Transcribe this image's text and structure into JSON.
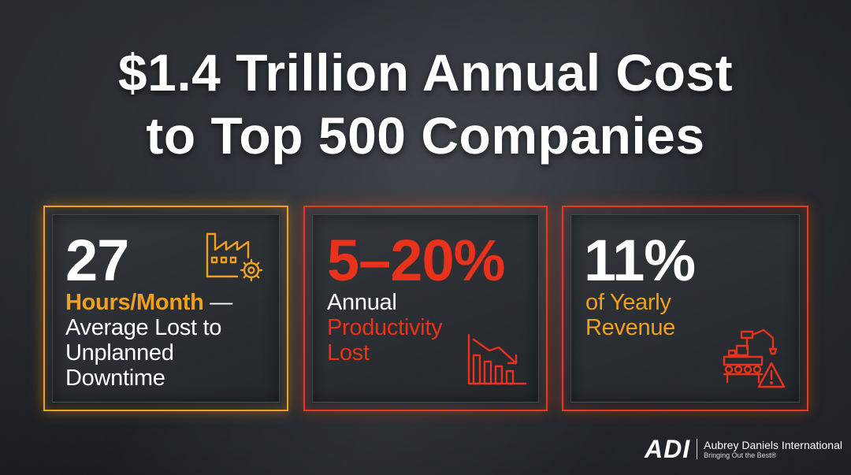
{
  "headline": {
    "line1": "$1.4 Trillion Annual Cost",
    "line2": "to Top 500 Companies"
  },
  "cards": [
    {
      "value": "27",
      "highlight": "Hours/Month",
      "highlight_suffix": " —",
      "lines": [
        "Average Lost to",
        "Unplanned",
        "Downtime"
      ],
      "icon": "factory-gear-icon",
      "accent": "#f0a020"
    },
    {
      "value": "5–20%",
      "label": "Annual",
      "highlight_lines": [
        "Productivity",
        "Lost"
      ],
      "icon": "declining-bar-chart-icon",
      "accent": "#e8321c"
    },
    {
      "value": "11%",
      "highlight_lines": [
        "of Yearly",
        "Revenue"
      ],
      "icon": "robot-arm-warning-icon",
      "accent": "#e8321c",
      "highlight_color": "#f0a020"
    }
  ],
  "logo": {
    "mark": "ADI",
    "name": "Aubrey Daniels International",
    "tagline": "Bringing Out the Best®"
  }
}
